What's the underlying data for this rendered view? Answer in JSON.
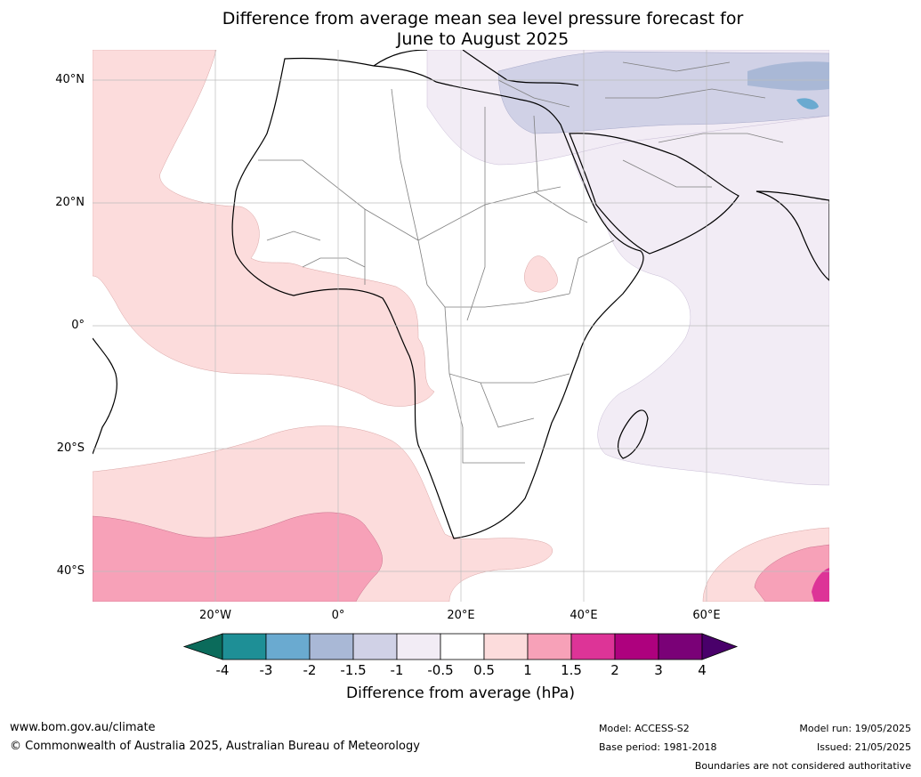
{
  "title": {
    "line1": "Difference from average mean sea level pressure forecast for",
    "line2": "June to August 2025"
  },
  "lat_labels": [
    "40°N",
    "20°N",
    "0°",
    "20°S",
    "40°S"
  ],
  "lon_labels": [
    "20°W",
    "0°",
    "20°E",
    "40°E",
    "60°E"
  ],
  "colorbar": {
    "ticks": [
      "-4",
      "-3",
      "-2",
      "-1.5",
      "-1",
      "-0.5",
      "0.5",
      "1",
      "1.5",
      "2",
      "3",
      "4"
    ],
    "colors": {
      "below_min": "#0b6b5b",
      "-4_-3": "#1e8f96",
      "-3_-2": "#6aaad0",
      "-2_-1.5": "#a9b8d6",
      "-1.5_-1": "#d0d1e6",
      "-1_-0.5": "#f2ecf5",
      "-0.5_0.5": "#ffffff",
      "0.5_1": "#fcdcdc",
      "1_1.5": "#f7a1b8",
      "1.5_2": "#dd3497",
      "2_3": "#ae017e",
      "3_4": "#7a0177",
      "above_max": "#49006a"
    },
    "label": "Difference from average (hPa)"
  },
  "footer": {
    "url": "www.bom.gov.au/climate",
    "copyright": "© Commonwealth of Australia 2025, Australian Bureau of Meteorology",
    "model": "Model: ACCESS-S2",
    "base_period": "Base period: 1981-2018",
    "model_run": "Model run: 19/05/2025",
    "issued": "Issued: 21/05/2025",
    "disclaimer": "Boundaries are not considered authoritative"
  }
}
